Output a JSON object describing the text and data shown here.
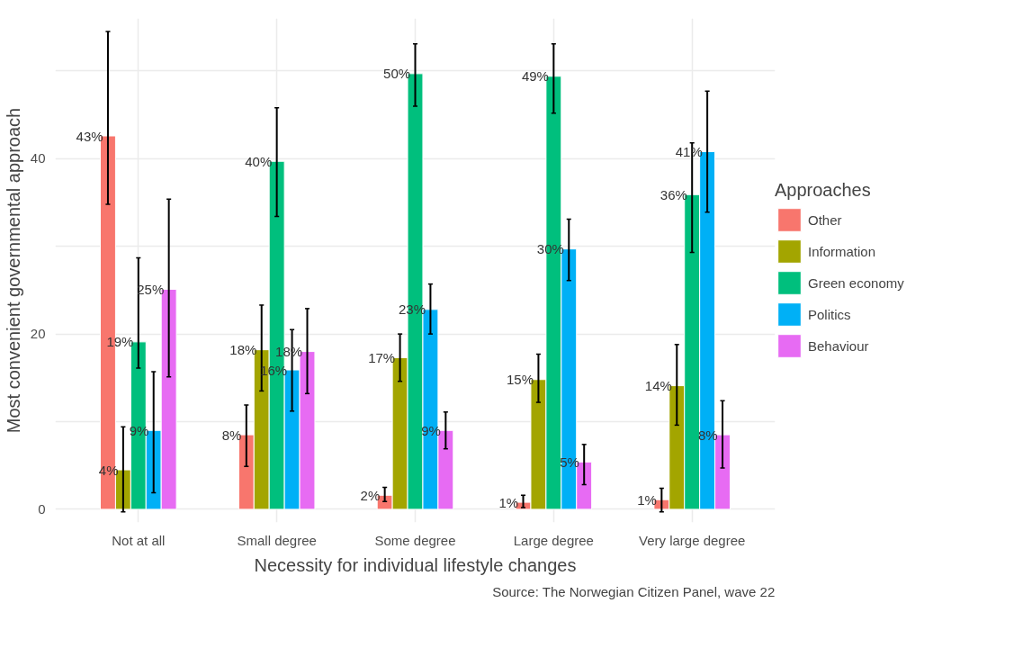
{
  "chart_data": {
    "type": "bar",
    "xlabel": "Necessity for individual lifestyle changes",
    "ylabel": "Most convenient governmental approach",
    "legend_title": "Approaches",
    "legend": "right",
    "grid": true,
    "categories": [
      "Not at all",
      "Small degree",
      "Some degree",
      "Large degree",
      "Very large degree"
    ],
    "ylim": [
      -1.5,
      56
    ],
    "yticks": [
      0,
      {
        "value": 10,
        "label": null
      },
      20,
      {
        "value": 30,
        "label": null
      },
      40,
      {
        "value": 50,
        "label": null
      }
    ],
    "series": [
      {
        "name": "Other",
        "color": "#f8766d",
        "values": [
          42.6,
          8.5,
          1.6,
          0.8,
          1.1
        ],
        "errors": [
          [
            34.8,
            54.5
          ],
          [
            4.9,
            11.9
          ],
          [
            0.9,
            2.5
          ],
          [
            0.2,
            1.6
          ],
          [
            -0.3,
            2.4
          ]
        ],
        "value_labels": [
          "43%",
          "8%",
          "2%",
          "1%",
          "1%"
        ]
      },
      {
        "name": "Information",
        "color": "#a3a500",
        "values": [
          4.5,
          18.2,
          17.3,
          14.8,
          14.1
        ],
        "errors": [
          [
            -0.3,
            9.4
          ],
          [
            13.5,
            23.3
          ],
          [
            14.6,
            20.0
          ],
          [
            12.2,
            17.7
          ],
          [
            9.6,
            18.8
          ]
        ],
        "value_labels": [
          "4%",
          "18%",
          "17%",
          "15%",
          "14%"
        ]
      },
      {
        "name": "Green economy",
        "color": "#00bf7d",
        "values": [
          19.1,
          39.7,
          49.7,
          49.4,
          35.9
        ],
        "errors": [
          [
            16.1,
            28.7
          ],
          [
            33.4,
            45.8
          ],
          [
            46.0,
            53.1
          ],
          [
            45.2,
            53.1
          ],
          [
            29.3,
            41.8
          ]
        ],
        "value_labels": [
          "19%",
          "40%",
          "50%",
          "49%",
          "36%"
        ]
      },
      {
        "name": "Politics",
        "color": "#00b0f6",
        "values": [
          9.0,
          15.9,
          22.8,
          29.7,
          40.8
        ],
        "errors": [
          [
            1.9,
            15.7
          ],
          [
            11.2,
            20.5
          ],
          [
            20.0,
            25.7
          ],
          [
            26.1,
            33.1
          ],
          [
            33.9,
            47.7
          ]
        ],
        "value_labels": [
          "9%",
          "16%",
          "23%",
          "30%",
          "41%"
        ]
      },
      {
        "name": "Behaviour",
        "color": "#e76bf3",
        "values": [
          25.1,
          18.0,
          9.0,
          5.4,
          8.5
        ],
        "errors": [
          [
            15.1,
            35.4
          ],
          [
            13.2,
            22.9
          ],
          [
            6.9,
            11.1
          ],
          [
            2.8,
            7.4
          ],
          [
            4.7,
            12.4
          ]
        ],
        "value_labels": [
          "25%",
          "18%",
          "9%",
          "5%",
          "8%"
        ]
      }
    ],
    "annotations": [
      "Source: The Norwegian Citizen Panel, wave 22"
    ]
  }
}
